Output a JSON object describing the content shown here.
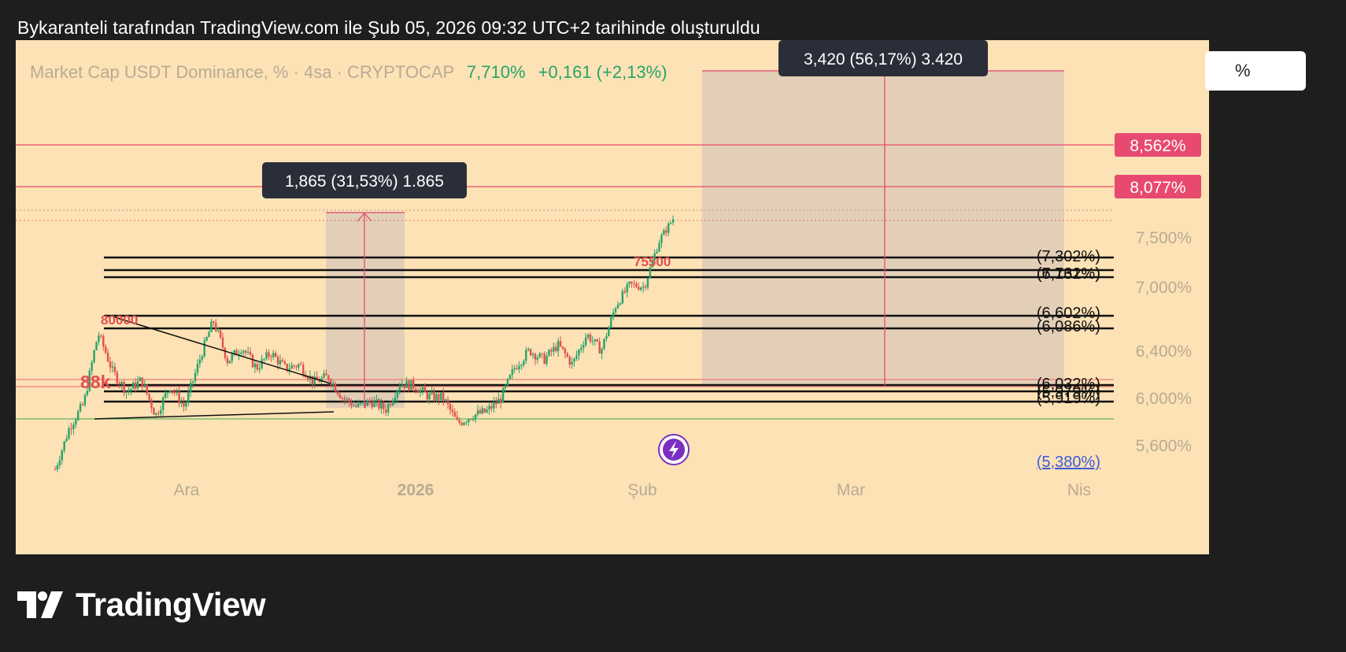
{
  "caption": "Bykaranteli tarafından TradingView.com ile Şub 05, 2026 09:32 UTC+2 tarihinde oluşturuldu",
  "legend": {
    "symbol": "Market Cap USDT Dominance, % · 4sa · CRYPTOCAP",
    "last": "7,710%",
    "change": "+0,161 (+2,13%)"
  },
  "scale_button": "%",
  "brand": {
    "name": "TradingView",
    "logo": "tradingview-logo-icon"
  },
  "colors": {
    "panel_bg": "#fde2b5",
    "up": "#26a46a",
    "down": "#e0504e",
    "marker": "#e84a6f",
    "box": "#d9c8b8",
    "tooltip": "#2a2e39"
  },
  "chart_data": {
    "type": "candlestick",
    "ylim": [
      5.25,
      9.5
    ],
    "x_tick_labels": [
      "Ara",
      "2026",
      "Şub",
      "Mar",
      "Nis"
    ],
    "y_tick_labels": [
      "7,500%",
      "7,000%",
      "6,400%",
      "6,000%",
      "5,600%"
    ],
    "y_tick_values": [
      7.5,
      7.0,
      6.4,
      6.0,
      5.6
    ],
    "price_path": [
      5.38,
      5.75,
      5.95,
      6.56,
      6.22,
      6.05,
      6.15,
      5.85,
      6.1,
      5.92,
      6.3,
      6.68,
      6.31,
      6.43,
      6.25,
      6.38,
      6.25,
      6.28,
      6.13,
      6.18,
      6.0,
      5.92,
      5.97,
      5.9,
      6.12,
      6.1,
      6.01,
      6.0,
      5.78,
      5.85,
      5.88,
      5.99,
      6.26,
      6.4,
      6.32,
      6.45,
      6.28,
      6.55,
      6.4,
      6.82,
      7.02,
      7.0,
      7.45,
      7.71
    ],
    "horizontal_lines": [
      {
        "label": "8,562%",
        "value": 8.562,
        "color": "#e84a6f"
      },
      {
        "label": "8,077%",
        "value": 8.077,
        "color": "#e84a6f"
      }
    ],
    "fib_levels": [
      {
        "label": "(7,302%)",
        "value": 7.302
      },
      {
        "label": "(7,162%)",
        "value": 7.162
      },
      {
        "label": "(6,731%)",
        "value": 6.731
      },
      {
        "label": "(6,602%)",
        "value": 6.602
      },
      {
        "label": "(6,086%)",
        "value": 6.086
      },
      {
        "label": "(6,032%)",
        "value": 6.032
      },
      {
        "label": "(5,979%)",
        "value": 5.979
      },
      {
        "label": "(5,919%)",
        "value": 5.919
      },
      {
        "label": "(5,380%)",
        "value": 5.38
      }
    ],
    "measure_tools": [
      {
        "label": "1,865 (31,53%) 1.865"
      },
      {
        "label": "3,420 (56,17%) 3.420"
      }
    ],
    "annotations": [
      "80000",
      "88k",
      "75500"
    ]
  }
}
